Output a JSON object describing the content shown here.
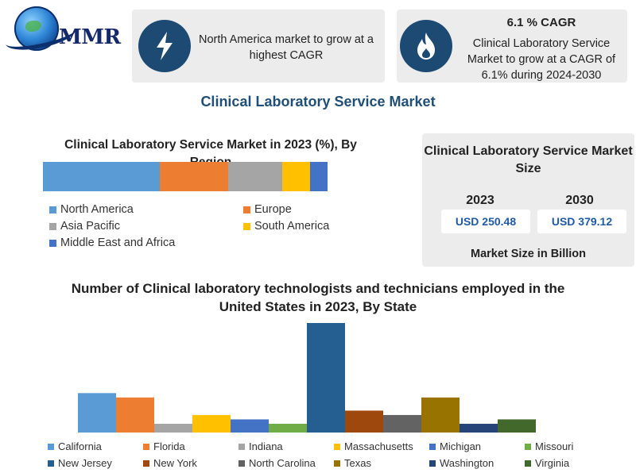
{
  "logo": {
    "text": "MMR"
  },
  "card1": {
    "icon": "lightning-bolt-icon",
    "text": "North America market to grow at a highest CAGR"
  },
  "card2": {
    "icon": "flame-icon",
    "title": "6.1 % CAGR",
    "text": "Clinical Laboratory Service Market to grow at a CAGR of 6.1% during 2024-2030"
  },
  "main_title": "Clinical Laboratory  Service Market",
  "market_size": {
    "title": "Clinical Laboratory Service Market Size",
    "years": [
      "2023",
      "2030"
    ],
    "values": [
      "USD 250.48",
      "USD 379.12"
    ],
    "unit": "Market Size in Billion"
  },
  "colors": {
    "accent": "#1c4a73",
    "card_bg": "#ececec",
    "title_blue": "#1f4e79"
  },
  "chart_data": [
    {
      "type": "bar",
      "stacked": true,
      "orientation": "horizontal",
      "title": "Clinical Laboratory Service  Market in 2023 (%), By Region",
      "categories": [
        "North America",
        "Europe",
        "Asia Pacific",
        "South America",
        "Middle East and Africa"
      ],
      "values": [
        41,
        24,
        19,
        10,
        6
      ],
      "colors": [
        "#5b9bd5",
        "#ed7d31",
        "#a5a5a5",
        "#ffc000",
        "#4472c4"
      ],
      "legend_position": "bottom"
    },
    {
      "type": "bar",
      "title": "Number of Clinical laboratory technologists and technicians employed in the United States in 2023, By State",
      "categories": [
        "California",
        "Florida",
        "Indiana",
        "Massachusetts",
        "Michigan",
        "Missouri",
        "New Jersey",
        "New York",
        "North Carolina",
        "Texas",
        "Washington",
        "Virginia"
      ],
      "values": [
        18,
        16,
        4,
        8,
        6,
        4,
        50,
        10,
        8,
        16,
        4,
        6
      ],
      "colors": [
        "#5b9bd5",
        "#ed7d31",
        "#a5a5a5",
        "#ffc000",
        "#4472c4",
        "#70ad47",
        "#255e91",
        "#9e480e",
        "#636363",
        "#997300",
        "#264478",
        "#43682b"
      ],
      "ylim": [
        0,
        50
      ],
      "grid": false,
      "legend_position": "bottom"
    }
  ]
}
